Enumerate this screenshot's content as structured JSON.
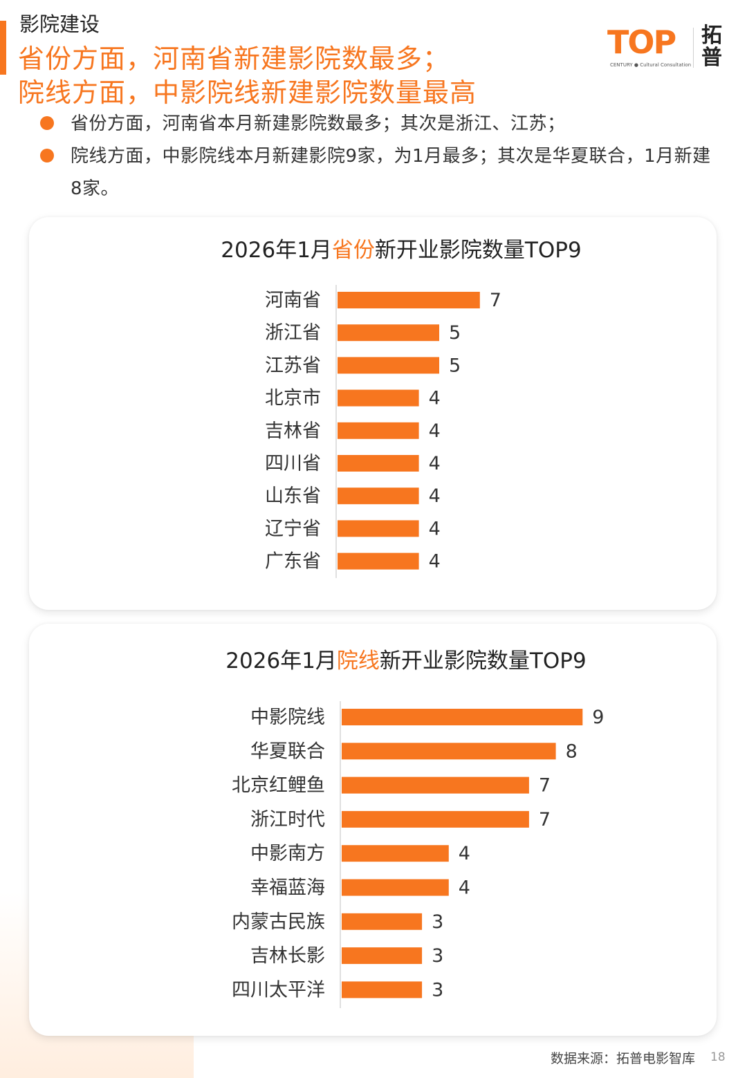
{
  "header": {
    "section_label": "影院建设",
    "headline_1": "省份方面，河南省新建影院数最多；",
    "headline_2": "院线方面，中影院线新建影院数量最高"
  },
  "logo": {
    "brand": "TOP",
    "tagline": "CENTURY ● Cultural Consultation",
    "cn_name": "拓普"
  },
  "bullets": [
    "省份方面，河南省本月新建影院数最多；其次是浙江、江苏；",
    "院线方面，中影院线本月新建影院9家，为1月最多；其次是华夏联合，1月新建8家。"
  ],
  "colors": {
    "accent": "#f7761f",
    "bar": "#f7761f",
    "text": "#222222"
  },
  "chart_data": [
    {
      "type": "bar",
      "orientation": "horizontal",
      "title_pre": "2026年1月",
      "title_highlight": "省份",
      "title_post": "新开业影院数量TOP9",
      "categories": [
        "河南省",
        "浙江省",
        "江苏省",
        "北京市",
        "吉林省",
        "四川省",
        "山东省",
        "辽宁省",
        "广东省"
      ],
      "values": [
        7,
        5,
        5,
        4,
        4,
        4,
        4,
        4,
        4
      ],
      "xlim": [
        0,
        7
      ],
      "grid": false,
      "legend": "none"
    },
    {
      "type": "bar",
      "orientation": "horizontal",
      "title_pre": "2026年1月",
      "title_highlight": "院线",
      "title_post": "新开业影院数量TOP9",
      "categories": [
        "中影院线",
        "华夏联合",
        "北京红鲤鱼",
        "浙江时代",
        "中影南方",
        "幸福蓝海",
        "内蒙古民族",
        "吉林长影",
        "四川太平洋"
      ],
      "values": [
        9,
        8,
        7,
        7,
        4,
        4,
        3,
        3,
        3
      ],
      "xlim": [
        0,
        9
      ],
      "grid": false,
      "legend": "none"
    }
  ],
  "footer": {
    "source": "数据来源：拓普电影智库",
    "page": "18"
  }
}
